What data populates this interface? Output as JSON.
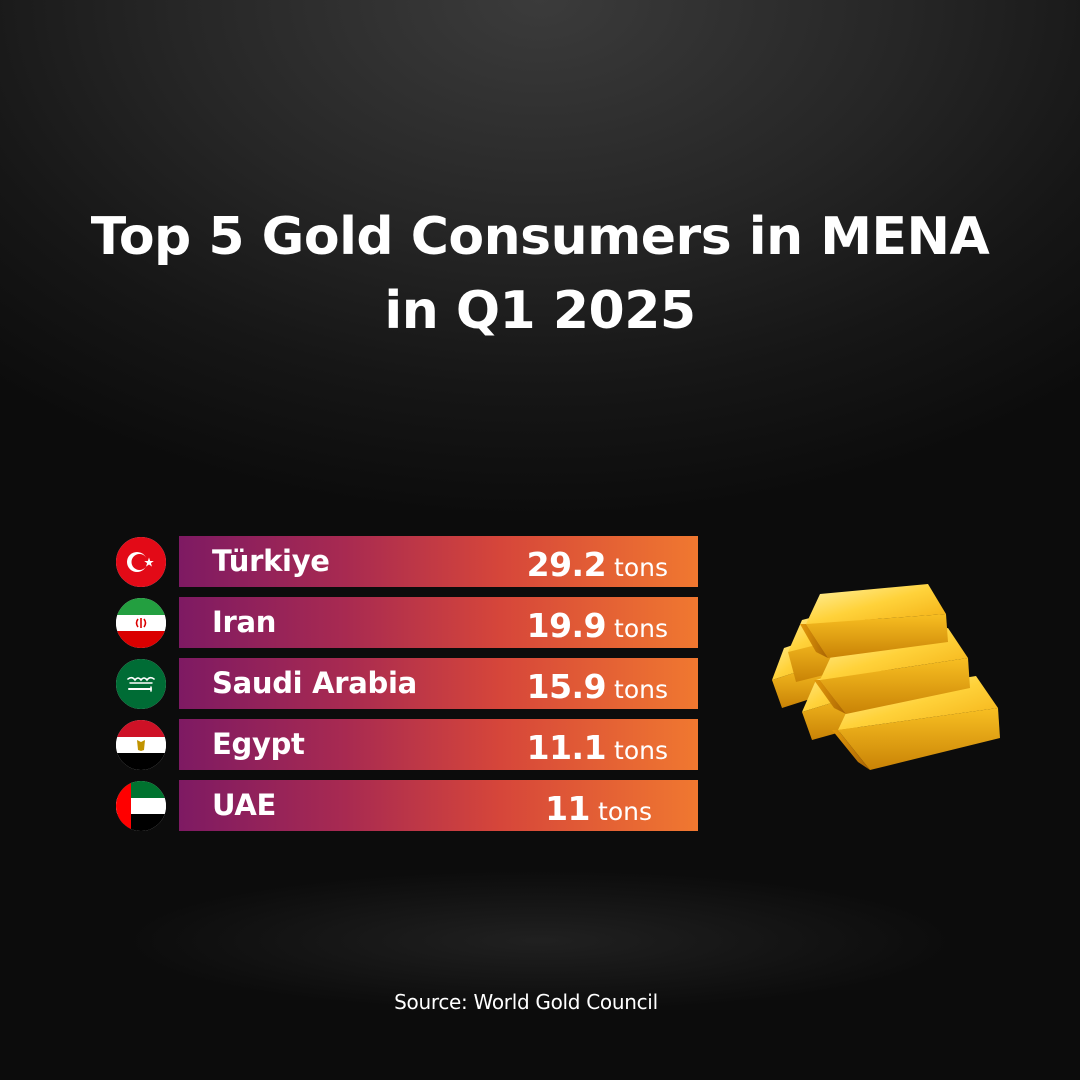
{
  "title_lines": [
    "Top 5 Gold Consumers in MENA",
    "in Q1 2025"
  ],
  "source": "Source: World Gold Council",
  "unit": "tons",
  "chart_data": {
    "type": "bar",
    "title": "Top 5 Gold Consumers in MENA in Q1 2025",
    "categories": [
      "Türkiye",
      "Iran",
      "Saudi Arabia",
      "Egypt",
      "UAE"
    ],
    "values": [
      29.2,
      19.9,
      15.9,
      11.1,
      11
    ],
    "value_labels": [
      "29.2",
      "19.9",
      "15.9",
      "11.1",
      "11"
    ],
    "unit": "tons",
    "flag_icons": [
      "turkey-flag-icon",
      "iran-flag-icon",
      "saudi-arabia-flag-icon",
      "egypt-flag-icon",
      "uae-flag-icon"
    ],
    "bar_gradient": [
      "#7e1a63",
      "#f07830"
    ],
    "legend": "none",
    "grid": false
  },
  "decoration": {
    "icon": "gold-bars-icon",
    "color": "#f5b51c"
  }
}
